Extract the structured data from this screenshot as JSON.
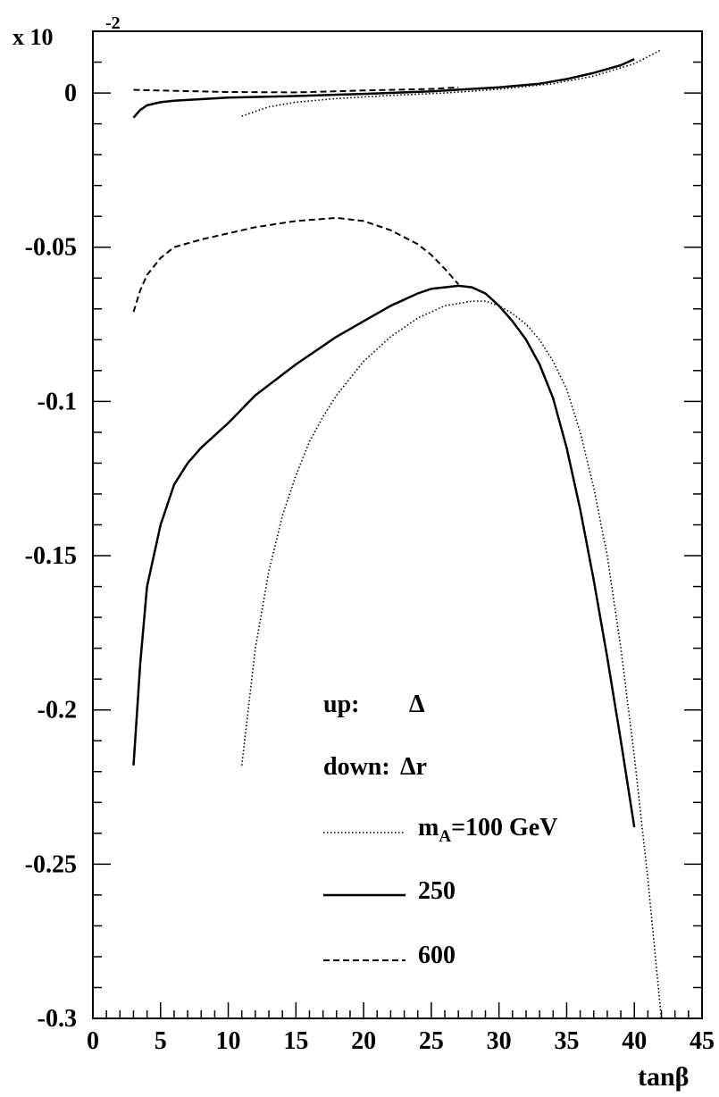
{
  "chart_data": {
    "type": "line",
    "xlabel": "tanβ",
    "ylabel_scale": "x 10",
    "ylabel_exponent": "-2",
    "xlim": [
      0,
      45
    ],
    "ylim": [
      -0.3,
      0.02
    ],
    "x_ticks": [
      0,
      5,
      10,
      15,
      20,
      25,
      30,
      35,
      40,
      45
    ],
    "y_ticks": [
      0,
      -0.05,
      -0.1,
      -0.15,
      -0.2,
      -0.25,
      -0.3
    ],
    "x_tick_labels": [
      "0",
      "5",
      "10",
      "15",
      "20",
      "25",
      "30",
      "35",
      "40",
      "45"
    ],
    "y_tick_labels": [
      "0",
      "-0.05",
      "-0.1",
      "-0.15",
      "-0.2",
      "-0.25",
      "-0.3"
    ],
    "grid": false,
    "annotations": {
      "up_label": "up:",
      "up_symbol": "Δ",
      "down_label": "down:",
      "down_symbol": "Δr"
    },
    "legend": {
      "placement": "lower-center",
      "entries": [
        {
          "prefix": "m",
          "subscript": "A",
          "suffix": "=100 GeV",
          "style": "dotted"
        },
        {
          "text": "250",
          "style": "solid"
        },
        {
          "text": "600",
          "style": "dashed"
        }
      ]
    },
    "series": [
      {
        "legend": "100 GeV",
        "group": "up",
        "style": "dotted",
        "x": [
          11,
          13,
          15,
          18,
          22,
          26,
          30,
          34,
          37,
          40,
          42
        ],
        "y": [
          -0.0075,
          -0.0045,
          -0.003,
          -0.0018,
          -0.0008,
          0.0,
          0.0012,
          0.003,
          0.0055,
          0.0095,
          0.014
        ]
      },
      {
        "legend": "250",
        "group": "up",
        "style": "solid",
        "x": [
          3,
          3.5,
          4,
          5,
          6,
          8,
          10,
          15,
          20,
          25,
          30,
          33,
          35,
          37,
          39,
          40
        ],
        "y": [
          -0.008,
          -0.0055,
          -0.004,
          -0.003,
          -0.0025,
          -0.002,
          -0.0015,
          -0.001,
          -0.0003,
          0.0005,
          0.0018,
          0.003,
          0.0045,
          0.0065,
          0.009,
          0.011
        ]
      },
      {
        "legend": "600",
        "group": "up",
        "style": "dashed",
        "x": [
          3,
          10,
          15,
          20,
          25,
          27
        ],
        "y": [
          0.001,
          0.0003,
          0.0002,
          0.0008,
          0.0013,
          0.0018
        ]
      },
      {
        "legend": "100 GeV",
        "group": "down",
        "style": "dotted",
        "x": [
          11,
          12,
          13,
          14,
          15,
          16,
          17,
          18,
          20,
          22,
          24,
          26,
          28,
          29,
          30,
          31,
          32,
          33,
          34,
          35,
          36,
          37,
          38,
          39,
          40,
          41,
          42
        ],
        "y": [
          -0.218,
          -0.18,
          -0.155,
          -0.137,
          -0.124,
          -0.113,
          -0.105,
          -0.098,
          -0.087,
          -0.079,
          -0.073,
          -0.069,
          -0.0675,
          -0.0675,
          -0.069,
          -0.0715,
          -0.075,
          -0.08,
          -0.087,
          -0.096,
          -0.11,
          -0.128,
          -0.15,
          -0.18,
          -0.215,
          -0.255,
          -0.3
        ]
      },
      {
        "legend": "250",
        "group": "down",
        "style": "solid",
        "x": [
          3,
          3.5,
          4,
          5,
          6,
          7,
          8,
          10,
          12,
          15,
          18,
          20,
          22,
          24,
          25,
          26,
          27,
          28,
          29,
          30,
          31,
          32,
          33,
          34,
          35,
          36,
          37,
          38,
          39,
          40
        ],
        "y": [
          -0.218,
          -0.185,
          -0.16,
          -0.14,
          -0.127,
          -0.12,
          -0.115,
          -0.107,
          -0.098,
          -0.088,
          -0.079,
          -0.074,
          -0.069,
          -0.065,
          -0.0635,
          -0.063,
          -0.0625,
          -0.063,
          -0.065,
          -0.069,
          -0.074,
          -0.08,
          -0.088,
          -0.099,
          -0.115,
          -0.135,
          -0.158,
          -0.183,
          -0.21,
          -0.238
        ]
      },
      {
        "legend": "600",
        "group": "down",
        "style": "dashed",
        "x": [
          3,
          3.5,
          4,
          5,
          6,
          8,
          10,
          12,
          15,
          18,
          20,
          22,
          24,
          25,
          26,
          27
        ],
        "y": [
          -0.071,
          -0.064,
          -0.059,
          -0.0535,
          -0.05,
          -0.0475,
          -0.0455,
          -0.0435,
          -0.0415,
          -0.0405,
          -0.0415,
          -0.0445,
          -0.049,
          -0.0525,
          -0.057,
          -0.062
        ]
      }
    ]
  }
}
